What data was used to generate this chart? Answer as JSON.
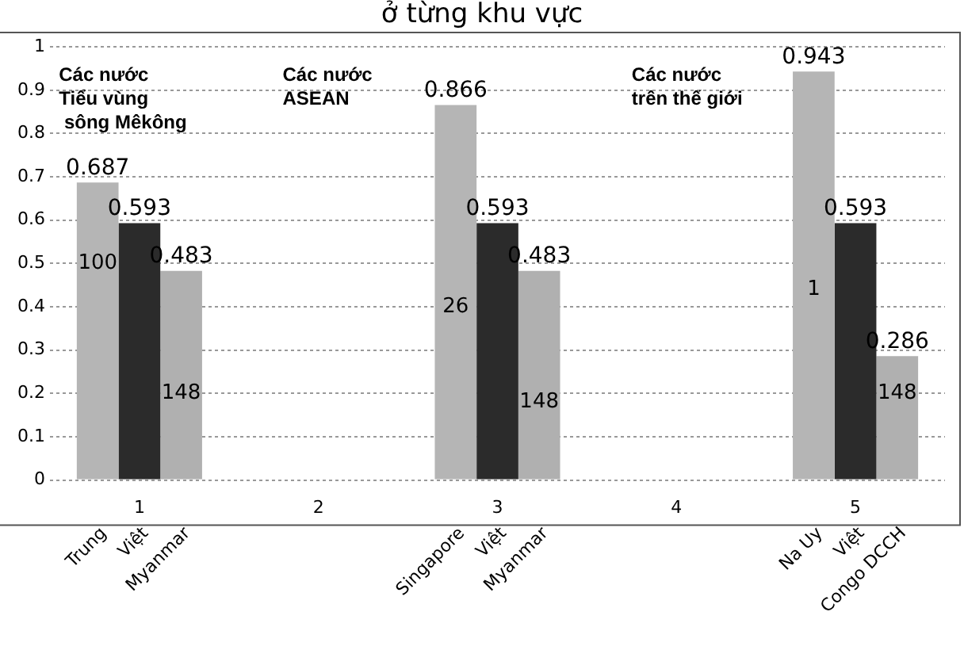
{
  "chart_data": {
    "type": "bar",
    "title": "ở từng khu vực",
    "categories": [
      "1",
      "2",
      "3",
      "4",
      "5"
    ],
    "series": [
      {
        "color": "#b5b5b5",
        "values": [
          0.687,
          null,
          0.866,
          null,
          0.943
        ]
      },
      {
        "color": "#2b2b2b",
        "values": [
          0.593,
          null,
          0.593,
          null,
          0.593
        ]
      },
      {
        "color": "#b0b0b0",
        "values": [
          0.483,
          null,
          0.483,
          null,
          0.286
        ]
      }
    ],
    "ylim": [
      0,
      1
    ],
    "yticks": [
      0,
      0.1,
      0.2,
      0.3,
      0.4,
      0.5,
      0.6,
      0.7,
      0.8,
      0.9,
      1
    ],
    "grid": "y",
    "legend": false,
    "data_labels": true,
    "annotations": [
      "Các nước\nTiểu vùng\n sông Mêkông",
      "Các nước\nASEAN",
      "Các nước\ntrên thế giới",
      "100",
      "148",
      "26",
      "148",
      "1",
      "148",
      {
        "text": "Trung",
        "x": "1",
        "y": 0
      },
      {
        "text": "Việt",
        "x": "1",
        "y": 0
      },
      {
        "text": "Myanmar",
        "x": "1",
        "y": 0
      },
      {
        "text": "Singapore",
        "x": "3",
        "y": 0
      },
      {
        "text": "Việt",
        "x": "3",
        "y": 0
      },
      {
        "text": "Myanmar",
        "x": "3",
        "y": 0
      },
      {
        "text": "Na Uy",
        "x": "5",
        "y": 0
      },
      {
        "text": "Việt",
        "x": "5",
        "y": 0
      },
      {
        "text": "Congo DCCH",
        "x": "5",
        "y": 0
      }
    ]
  }
}
